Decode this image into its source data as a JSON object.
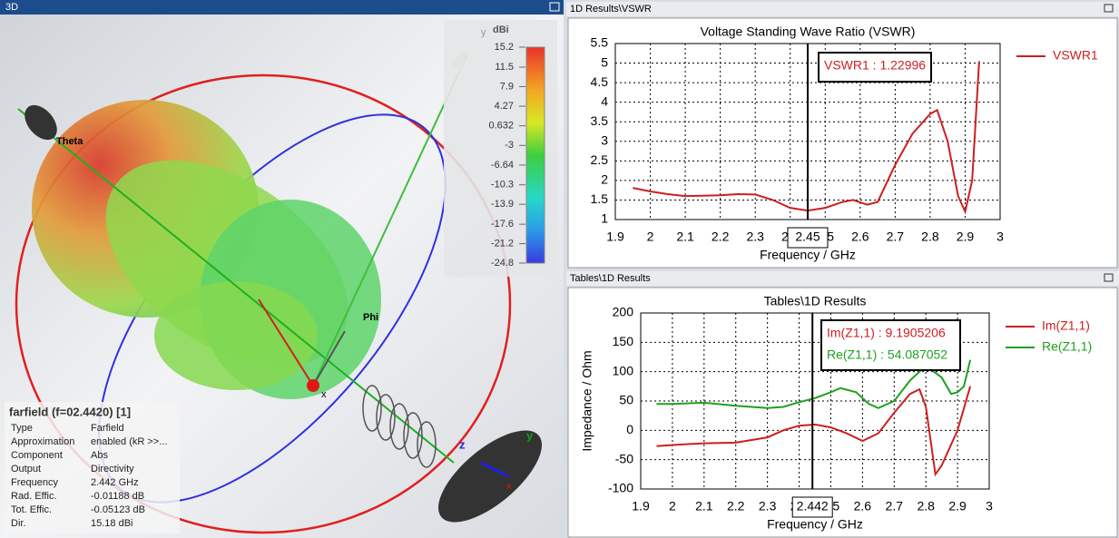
{
  "windows": {
    "view3d": "3D",
    "vswr": "1D Results\\VSWR",
    "impedance": "Tables\\1D Results"
  },
  "view3d": {
    "unit": "dBi",
    "axis_labels": [
      "y",
      "Theta",
      "Phi",
      "x",
      "z",
      "y",
      "x"
    ],
    "colorbar": [
      15.2,
      11.5,
      7.9,
      4.27,
      0.632,
      -3,
      -6.64,
      -10.3,
      -13.9,
      -17.6,
      -21.2,
      -24.8
    ],
    "info": {
      "title": "farfield (f=02.4420) [1]",
      "rows": [
        [
          "Type",
          "Farfield"
        ],
        [
          "Approximation",
          "enabled (kR >>..."
        ],
        [
          "Component",
          "Abs"
        ],
        [
          "Output",
          "Directivity"
        ],
        [
          "Frequency",
          "2.442 GHz"
        ],
        [
          "Rad. Effic.",
          "-0.01188 dB"
        ],
        [
          "Tot. Effic.",
          "-0.05123 dB"
        ],
        [
          "Dir.",
          "15.18 dBi"
        ]
      ]
    }
  },
  "chart_data": [
    {
      "type": "line",
      "title": "Voltage Standing Wave Ratio (VSWR)",
      "x_label": "Frequency / GHz",
      "xlim": [
        1.9,
        3
      ],
      "xticks": [
        1.9,
        2,
        2.1,
        2.2,
        2.3,
        2.4,
        2.5,
        2.6,
        2.7,
        2.8,
        2.9,
        3
      ],
      "ylim": [
        1,
        5.5
      ],
      "yticks": [
        1,
        1.5,
        2,
        2.5,
        3,
        3.5,
        4,
        4.5,
        5,
        5.5
      ],
      "grid": true,
      "series": [
        {
          "name": "VSWR1",
          "color": "#cc1f1f",
          "x": [
            1.95,
            2.0,
            2.05,
            2.1,
            2.2,
            2.25,
            2.3,
            2.35,
            2.4,
            2.45,
            2.5,
            2.55,
            2.58,
            2.62,
            2.65,
            2.7,
            2.75,
            2.8,
            2.82,
            2.85,
            2.88,
            2.9,
            2.92,
            2.94
          ],
          "values": [
            1.81,
            1.72,
            1.65,
            1.6,
            1.62,
            1.65,
            1.64,
            1.5,
            1.3,
            1.23,
            1.3,
            1.45,
            1.5,
            1.38,
            1.45,
            2.4,
            3.2,
            3.7,
            3.8,
            3.0,
            1.6,
            1.2,
            2.0,
            5.05
          ]
        }
      ],
      "marker": {
        "x": 2.45,
        "annotations": [
          "VSWR1 : 1.22996"
        ]
      }
    },
    {
      "type": "line",
      "title": "Tables\\1D Results",
      "x_label": "Frequency / GHz",
      "y_label": "Impedance / Ohm",
      "xlim": [
        1.9,
        3
      ],
      "xticks": [
        1.9,
        2,
        2.1,
        2.2,
        2.3,
        2.4,
        2.5,
        2.6,
        2.7,
        2.8,
        2.9,
        3
      ],
      "ylim": [
        -100,
        200
      ],
      "yticks": [
        -100,
        -50,
        0,
        50,
        100,
        150,
        200
      ],
      "grid": true,
      "series": [
        {
          "name": "Im(Z1,1)",
          "color": "#cc1f1f",
          "x": [
            1.95,
            2.0,
            2.1,
            2.2,
            2.3,
            2.35,
            2.4,
            2.45,
            2.5,
            2.55,
            2.6,
            2.65,
            2.7,
            2.75,
            2.78,
            2.8,
            2.83,
            2.85,
            2.9,
            2.94
          ],
          "values": [
            -27,
            -25,
            -22,
            -21,
            -12,
            0,
            8,
            10,
            5,
            -5,
            -18,
            -5,
            30,
            62,
            70,
            40,
            -75,
            -60,
            0,
            75
          ]
        },
        {
          "name": "Re(Z1,1)",
          "color": "#1fa01f",
          "x": [
            1.95,
            2.0,
            2.1,
            2.2,
            2.3,
            2.35,
            2.4,
            2.45,
            2.5,
            2.53,
            2.58,
            2.62,
            2.65,
            2.7,
            2.75,
            2.8,
            2.85,
            2.88,
            2.9,
            2.92,
            2.94
          ],
          "values": [
            45,
            45,
            47,
            42,
            38,
            40,
            48,
            55,
            65,
            72,
            65,
            45,
            38,
            50,
            85,
            110,
            90,
            62,
            65,
            75,
            120
          ]
        }
      ],
      "marker": {
        "x": 2.442,
        "annotations": [
          "Im(Z1,1) : 9.1905206",
          "Re(Z1,1) : 54.087052"
        ]
      }
    }
  ]
}
